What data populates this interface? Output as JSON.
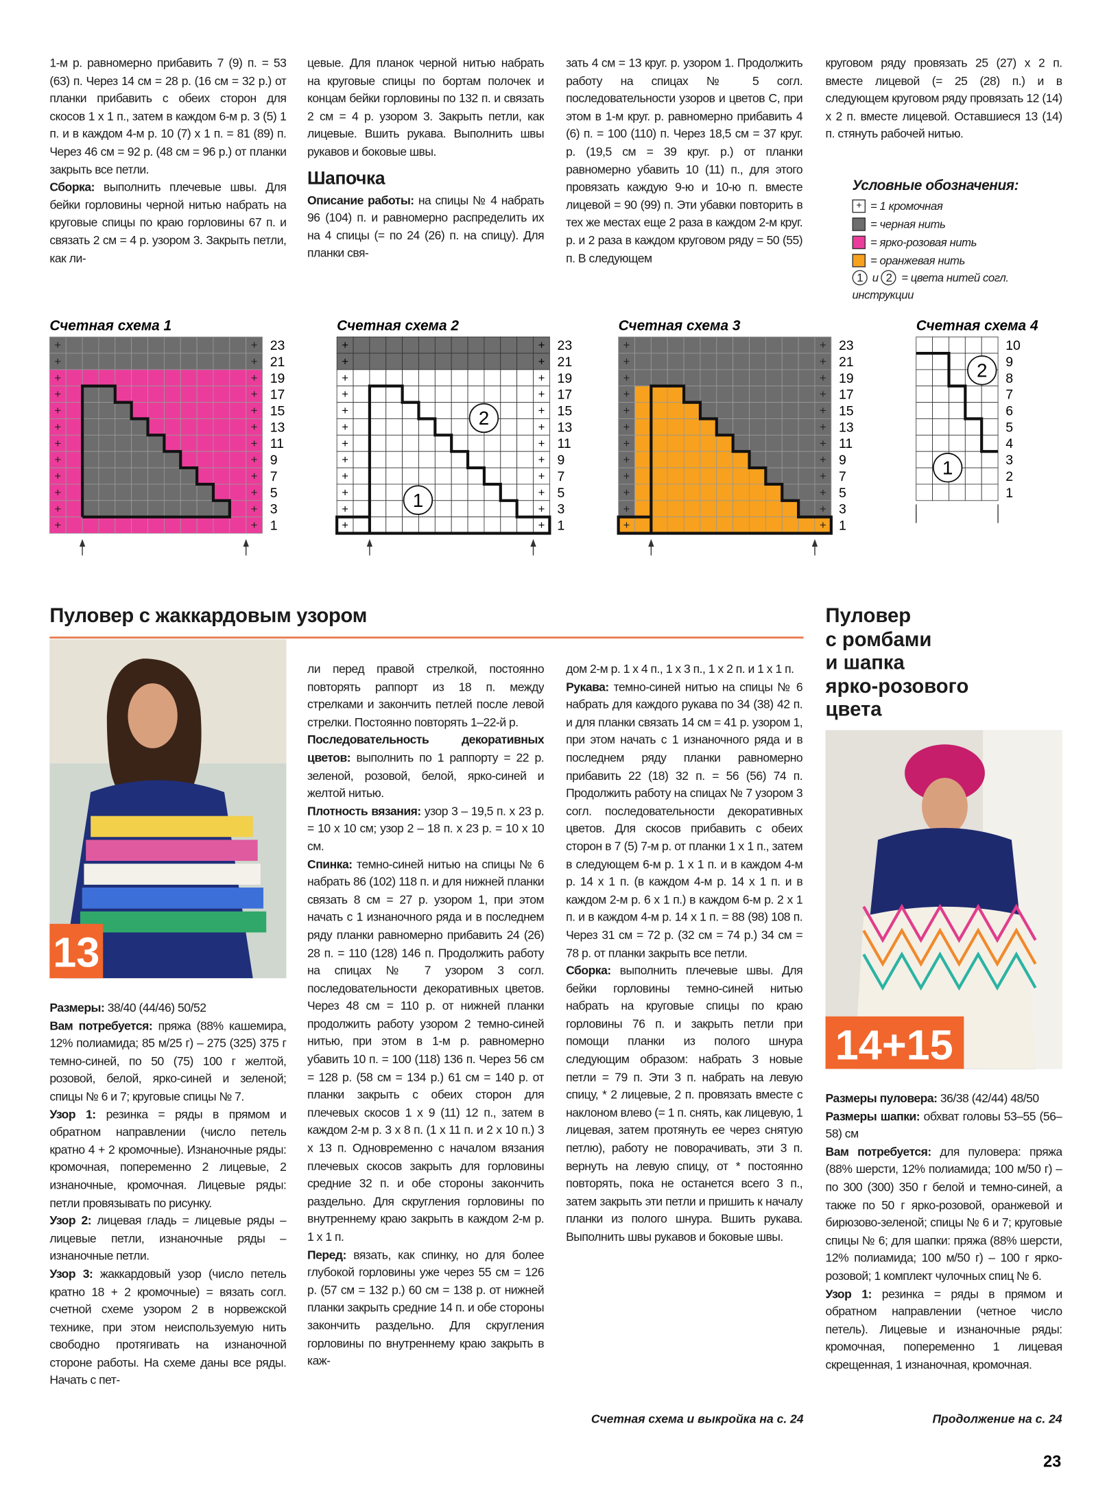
{
  "top_columns": [
    [
      "1-м р. равномерно прибавить 7 (9) п. = 53 (63) п. Через 14 см = 28 р. (16 см = 32 р.) от планки прибавить с обеих сторон для скосов 1 х 1 п., затем в каждом 6-м р. 3 (5) 1 п. и в каждом 4-м р. 10 (7) х 1 п. = 81 (89) п. Через 46 см = 92 р. (48 см = 96 р.) от планки закрыть все петли.",
      {
        "lead": "Сборка:",
        "text": "выполнить плечевые швы. Для бейки горловины черной нитью набрать на круговые спицы по краю горловины 67 п. и связать 2 см = 4 р. узором 3. Закрыть петли, как ли-"
      }
    ],
    [
      "цевые. Для планок черной нитью набрать на круговые спицы по бортам полочек и концам бейки горловины по 132 п. и связать 2 см = 4 р. узором 3. Закрыть петли, как лицевые. Вшить рукава. Выполнить швы рукавов и боковые швы.",
      {
        "heading": "Шапочка"
      },
      {
        "lead": "Описание работы:",
        "text": "на спицы № 4 набрать 96 (104) п. и равномерно распределить их на 4 спицы (= по 24 (26) п. на спицу). Для планки свя-"
      }
    ],
    [
      "зать 4 см = 13 круг. р. узором 1. Продолжить работу на спицах № 5 согл. последовательности узоров и цветов С, при этом в 1-м круг. р. равномерно прибавить 4 (6) п. = 100 (110) п. Через 18,5 см = 37 круг. р. (19,5 см = 39 круг. р.) от планки равномерно убавить 10 (11) п., для этого провязать каждую 9-ю и 10-ю п. вместе лицевой = 90 (99) п. Эти убавки повторить в тех же местах еще 2 раза в каждом 2-м круг. р. и 2 раза в каждом круговом ряду = 50 (55) п. В следующем"
    ],
    [
      "круговом ряду провязать 25 (27) х 2 п. вместе лицевой (= 25 (28) п.) и в следующем круговом ряду провязать 12 (14) х 2 п. вместе лицевой. Оставшиеся 13 (14) п. стянуть рабочей нитью."
    ]
  ],
  "legend": {
    "title": "Условные обозначения:",
    "items": [
      "= 1 кромочная",
      "= черная нить",
      "= ярко-розовая нить",
      "= оранжевая нить"
    ],
    "note": {
      "c1": "1",
      "mid": "и",
      "c2": "2",
      "text": "= цвета нитей согл. инструкции"
    }
  },
  "charts": [
    {
      "title": "Счетная схема 1",
      "row_labels": [
        23,
        21,
        19,
        17,
        15,
        13,
        11,
        9,
        7,
        5,
        3,
        1
      ]
    },
    {
      "title": "Счетная схема 2",
      "row_labels": [
        23,
        21,
        19,
        17,
        15,
        13,
        11,
        9,
        7,
        5,
        3,
        1
      ],
      "circles": [
        "1",
        "2"
      ]
    },
    {
      "title": "Счетная схема 3",
      "row_labels": [
        23,
        21,
        19,
        17,
        15,
        13,
        11,
        9,
        7,
        5,
        3,
        1
      ]
    },
    {
      "title": "Счетная схема 4",
      "row_labels": [
        10,
        9,
        8,
        7,
        6,
        5,
        4,
        3,
        2,
        1
      ],
      "circles": [
        "1",
        "2"
      ]
    }
  ],
  "article1": {
    "title": "Пуловер с жаккардовым узором",
    "badge": "13",
    "columns": [
      [
        {
          "lead": "Размеры:",
          "text": "38/40 (44/46) 50/52"
        },
        {
          "lead": "Вам потребуется:",
          "text": "пряжа (88% кашемира, 12% полиамида; 85 м/25 г) – 275 (325) 375 г темно-синей, по 50 (75) 100 г желтой, розовой, белой, ярко-синей и зеленой; спицы № 6 и 7; круговые спицы № 7."
        },
        {
          "lead": "Узор 1:",
          "text": "резинка = ряды в прямом и обратном направлении (число петель кратно 4 + 2 кромочные). Изнаночные ряды: кромочная, попеременно 2 лицевые, 2 изнаночные, кромочная. Лицевые ряды: петли провязывать по рисунку."
        },
        {
          "lead": "Узор 2:",
          "text": "лицевая гладь = лицевые ряды – лицевые петли, изнаночные ряды – изнаночные петли."
        },
        {
          "lead": "Узор 3:",
          "text": "жаккардовый узор (число петель кратно 18 + 2 кромочные) = вязать согл. счетной схеме узором 2 в норвежской технике, при этом неиспользуемую нить свободно протягивать на изнаночной стороне работы. На схеме даны все ряды. Начать с пет-"
        }
      ],
      [
        "ли перед правой стрелкой, постоянно повторять раппорт из 18 п. между стрелками и закончить петлей после левой стрелки. Постоянно повторять 1–22-й р.",
        {
          "lead": "Последовательность декоративных цветов:",
          "text": "выполнить по 1 раппорту = 22 р. зеленой, розовой, белой, ярко-синей и желтой нитью."
        },
        {
          "lead": "Плотность вязания:",
          "text": "узор 3 – 19,5 п. х 23 р. = 10 х 10 см; узор 2 – 18 п. х 23 р. = 10 х 10 см."
        },
        {
          "lead": "Спинка:",
          "text": "темно-синей нитью на спицы № 6 набрать 86 (102) 118 п. и для нижней планки связать 8 см = 27 р. узором 1, при этом начать с 1 изнаночного ряда и в последнем ряду планки равномерно прибавить 24 (26) 28 п. = 110 (128) 146 п. Продолжить работу на спицах № 7 узором 3 согл. последовательности декоративных цветов. Через 48 см = 110 р. от нижней планки продолжить работу узором 2 темно-синей нитью, при этом в 1-м р. равномерно убавить 10 п. = 100 (118) 136 п. Через 56 см = 128 р. (58 см = 134 р.) 61 см = 140 р. от планки закрыть с обеих сторон для плечевых скосов 1 х 9 (11) 12 п., затем в каждом 2-м р. 3 х 8 п. (1 х 11 п. и 2 х 10 п.) 3 х 13 п. Одновременно с началом вязания плечевых скосов закрыть для горловины средние 32 п. и обе стороны закончить раздельно. Для скругления горловины по внутреннему краю закрыть в каждом 2-м р. 1 х 1 п."
        },
        {
          "lead": "Перед:",
          "text": "вязать, как спинку, но для более глубокой горловины уже через 55 см = 126 р. (57 см = 132 р.) 60 см = 138 р. от нижней планки закрыть средние 14 п. и обе стороны закончить раздельно. Для скругления горловины по внутреннему краю закрыть в каж-"
        }
      ],
      [
        "дом 2-м р. 1 х 4 п., 1 х 3 п., 1 х 2 п. и 1 х 1 п.",
        {
          "lead": "Рукава:",
          "text": "темно-синей нитью на спицы № 6 набрать для каждого рукава по 34 (38) 42 п. и для планки связать 14 см = 41 р. узором 1, при этом начать с 1 изнаночного ряда и в последнем ряду планки равномерно прибавить 22 (18) 32 п. = 56 (56) 74 п. Продолжить работу на спицах № 7 узором 3 согл. последовательности декоративных цветов. Для скосов прибавить с обеих сторон в 7 (5) 7-м р. от планки 1 х 1 п., затем в следующем 6-м р. 1 х 1 п. и в каждом 4-м р. 14 х 1 п. (в каждом 4-м р. 14 х 1 п. и в каждом 2-м р. 6 х 1 п.) в каждом 6-м р. 2 х 1 п. и в каждом 4-м р. 14 х 1 п. = 88 (98) 108 п. Через 31 см = 72 р. (32 см = 74 р.) 34 см = 78 р. от планки закрыть все петли."
        },
        {
          "lead": "Сборка:",
          "text": "выполнить плечевые швы. Для бейки горловины темно-синей нитью набрать на круговые спицы по краю горловины 76 п. и закрыть петли при помощи планки из полого шнура следующим образом: набрать 3 новые петли = 79 п. Эти 3 п. набрать на левую спицу, * 2 лицевые, 2 п. провязать вместе с наклоном влево (= 1 п. снять, как лицевую, 1 лицевая, затем протянуть ее через снятую петлю), работу не поворачивать, эти 3 п. вернуть на левую спицу, от * постоянно повторять, пока не останется всего 3 п., затем закрыть эти петли и пришить к началу планки из полого шнура. Вшить рукава. Выполнить швы рукавов и боковые швы."
        }
      ]
    ],
    "footnote": "Счетная схема и выкройка на с. 24"
  },
  "article2": {
    "title_lines": [
      "Пуловер",
      "с ромбами",
      "и шапка",
      "ярко-розового",
      "цвета"
    ],
    "badge": "14+15",
    "column": [
      {
        "lead": "Размеры пуловера:",
        "text": "36/38 (42/44) 48/50"
      },
      {
        "lead": "Размеры шапки:",
        "text": "обхват головы 53–55 (56–58) см"
      },
      {
        "lead": "Вам потребуется:",
        "text": "для пуловера: пряжа (88% шерсти, 12% полиамида; 100 м/50 г) – по 300 (300) 350 г белой и темно-синей, а также по 50 г ярко-розовой, оранжевой и бирюзово-зеленой; спицы № 6 и 7; круговые спицы № 6; для шапки: пряжа (88% шерсти, 12% полиамида; 100 м/50 г) – 100 г ярко-розовой; 1 комплект чулочных спиц № 6."
      },
      {
        "lead": "Узор 1:",
        "text": "резинка = ряды в прямом и обратном направлении (четное число петель). Лицевые и изнаночные ряды: кромочная, попеременно 1 лицевая скрещенная, 1 изнаночная, кромочная."
      }
    ],
    "footnote": "Продолжение на с. 24"
  },
  "page_number": "23"
}
